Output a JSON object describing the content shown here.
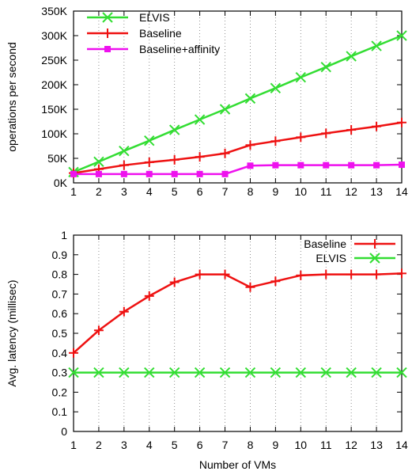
{
  "chart_data": [
    {
      "type": "line",
      "xlabel": "",
      "ylabel": "operations per second",
      "x": [
        1,
        2,
        3,
        4,
        5,
        6,
        7,
        8,
        9,
        10,
        11,
        12,
        13,
        14
      ],
      "xticks": [
        "1",
        "2",
        "3",
        "4",
        "5",
        "6",
        "7",
        "8",
        "9",
        "10",
        "11",
        "12",
        "13",
        "14"
      ],
      "ylim": [
        0,
        350000
      ],
      "yticks": [
        {
          "value": 0,
          "label": "0K"
        },
        {
          "value": 50000,
          "label": "50K"
        },
        {
          "value": 100000,
          "label": "100K"
        },
        {
          "value": 150000,
          "label": "150K"
        },
        {
          "value": 200000,
          "label": "200K"
        },
        {
          "value": 250000,
          "label": "250K"
        },
        {
          "value": 300000,
          "label": "300K"
        },
        {
          "value": 350000,
          "label": "350K"
        }
      ],
      "vertical_grid": true,
      "legend_position": "top-left",
      "series": [
        {
          "name": "ELVIS",
          "color": "#33dd33",
          "marker": "x",
          "values": [
            22000,
            43000,
            65000,
            86000,
            108000,
            129000,
            150000,
            172000,
            193000,
            215000,
            236000,
            258000,
            279000,
            300000
          ]
        },
        {
          "name": "Baseline",
          "color": "#ee1111",
          "marker": "plus",
          "values": [
            20000,
            28000,
            36000,
            42000,
            47000,
            53000,
            60000,
            77000,
            85000,
            93000,
            101000,
            108000,
            115000,
            123000
          ]
        },
        {
          "name": "Baseline+affinity",
          "color": "#ee11ee",
          "marker": "square",
          "values": [
            18000,
            18000,
            18000,
            18000,
            18000,
            18000,
            18000,
            35000,
            36000,
            36000,
            36000,
            36000,
            36000,
            37000
          ]
        }
      ]
    },
    {
      "type": "line",
      "xlabel": "Number of VMs",
      "ylabel": "Avg. latency (millisec)",
      "x": [
        1,
        2,
        3,
        4,
        5,
        6,
        7,
        8,
        9,
        10,
        11,
        12,
        13,
        14
      ],
      "xticks": [
        "1",
        "2",
        "3",
        "4",
        "5",
        "6",
        "7",
        "8",
        "9",
        "10",
        "11",
        "12",
        "13",
        "14"
      ],
      "ylim": [
        0,
        1
      ],
      "yticks": [
        {
          "value": 0,
          "label": "0"
        },
        {
          "value": 0.1,
          "label": "0.1"
        },
        {
          "value": 0.2,
          "label": "0.2"
        },
        {
          "value": 0.3,
          "label": "0.3"
        },
        {
          "value": 0.4,
          "label": "0.4"
        },
        {
          "value": 0.5,
          "label": "0.5"
        },
        {
          "value": 0.6,
          "label": "0.6"
        },
        {
          "value": 0.7,
          "label": "0.7"
        },
        {
          "value": 0.8,
          "label": "0.8"
        },
        {
          "value": 0.9,
          "label": "0.9"
        },
        {
          "value": 1,
          "label": "1"
        }
      ],
      "vertical_grid": true,
      "legend_position": "top-right",
      "series": [
        {
          "name": "Baseline",
          "color": "#ee1111",
          "marker": "plus",
          "values": [
            0.4,
            0.515,
            0.61,
            0.69,
            0.76,
            0.8,
            0.8,
            0.735,
            0.765,
            0.795,
            0.8,
            0.8,
            0.8,
            0.805
          ]
        },
        {
          "name": "ELVIS",
          "color": "#33dd33",
          "marker": "x",
          "values": [
            0.3,
            0.3,
            0.3,
            0.3,
            0.3,
            0.3,
            0.3,
            0.3,
            0.3,
            0.3,
            0.3,
            0.3,
            0.3,
            0.3
          ]
        }
      ]
    }
  ]
}
